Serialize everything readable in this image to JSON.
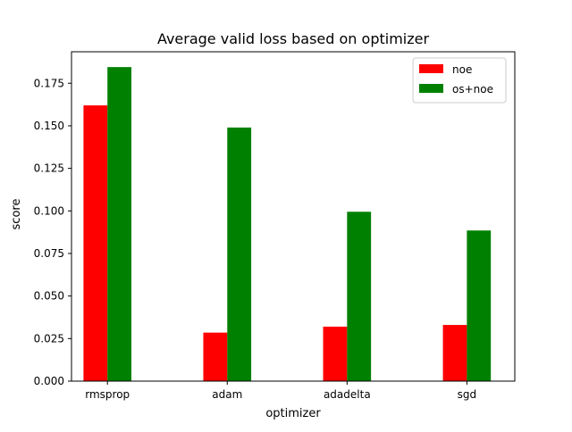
{
  "chart_data": {
    "type": "bar",
    "title": "Average valid loss based on optimizer",
    "xlabel": "optimizer",
    "ylabel": "score",
    "categories": [
      "rmsprop",
      "adam",
      "adadelta",
      "sgd"
    ],
    "series": [
      {
        "name": "noe",
        "color": "#ff0000",
        "values": [
          0.162,
          0.0285,
          0.032,
          0.033
        ]
      },
      {
        "name": "os+noe",
        "color": "#008000",
        "values": [
          0.1845,
          0.149,
          0.0995,
          0.0885
        ]
      }
    ],
    "ylim": [
      0,
      0.1935
    ],
    "yticks": [
      0.0,
      0.025,
      0.05,
      0.075,
      0.1,
      0.125,
      0.15,
      0.175
    ],
    "ytick_labels": [
      "0.000",
      "0.025",
      "0.050",
      "0.075",
      "0.100",
      "0.125",
      "0.150",
      "0.175"
    ],
    "grid": false,
    "legend_position": "top-right"
  }
}
